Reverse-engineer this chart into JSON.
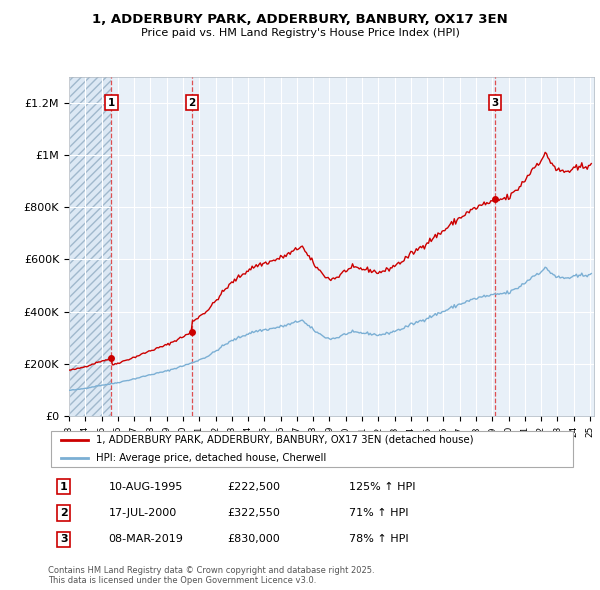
{
  "title": "1, ADDERBURY PARK, ADDERBURY, BANBURY, OX17 3EN",
  "subtitle": "Price paid vs. HM Land Registry's House Price Index (HPI)",
  "ylim": [
    0,
    1300000
  ],
  "yticks": [
    0,
    200000,
    400000,
    600000,
    800000,
    1000000,
    1200000
  ],
  "ytick_labels": [
    "£0",
    "£200K",
    "£400K",
    "£600K",
    "£800K",
    "£1M",
    "£1.2M"
  ],
  "sale_dates_float": [
    1995.607,
    2000.541,
    2019.178
  ],
  "sale_prices": [
    222500,
    322550,
    830000
  ],
  "sale_labels": [
    "1",
    "2",
    "3"
  ],
  "legend_red": "1, ADDERBURY PARK, ADDERBURY, BANBURY, OX17 3EN (detached house)",
  "legend_blue": "HPI: Average price, detached house, Cherwell",
  "table_rows": [
    [
      "1",
      "10-AUG-1995",
      "£222,500",
      "125% ↑ HPI"
    ],
    [
      "2",
      "17-JUL-2000",
      "£322,550",
      "71% ↑ HPI"
    ],
    [
      "3",
      "08-MAR-2019",
      "£830,000",
      "78% ↑ HPI"
    ]
  ],
  "footer": "Contains HM Land Registry data © Crown copyright and database right 2025.\nThis data is licensed under the Open Government Licence v3.0.",
  "red_color": "#cc0000",
  "blue_color": "#7bafd4",
  "hatch_bg_color": "#dce8f4",
  "plain_bg_color": "#e8f0f8"
}
